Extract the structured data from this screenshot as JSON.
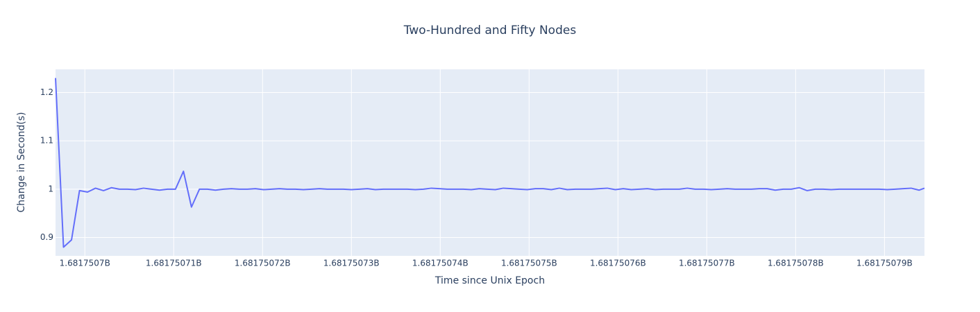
{
  "chart_data": {
    "type": "line",
    "title": "Two-Hundred and Fifty Nodes",
    "x_label": "Time since Unix Epoch",
    "y_label": "Change in Second(s)",
    "color": "#636efa",
    "background": "#e5ecf6",
    "grid": true,
    "x": [
      1681750696.7,
      1681750697.6,
      1681750698.5,
      1681750699.4,
      1681750700.3,
      1681750701.2,
      1681750702.1,
      1681750703,
      1681750703.9,
      1681750704.8,
      1681750705.7,
      1681750706.6,
      1681750707.5,
      1681750708.4,
      1681750709.3,
      1681750710.2,
      1681750711.1,
      1681750712,
      1681750712.9,
      1681750713.8,
      1681750714.7,
      1681750715.6,
      1681750716.5,
      1681750717.4,
      1681750718.3,
      1681750719.2,
      1681750720.1,
      1681750721,
      1681750721.9,
      1681750722.8,
      1681750723.7,
      1681750724.6,
      1681750725.5,
      1681750726.4,
      1681750727.3,
      1681750728.2,
      1681750729.1,
      1681750730,
      1681750730.9,
      1681750731.8,
      1681750732.7,
      1681750733.6,
      1681750734.5,
      1681750735.4,
      1681750736.3,
      1681750737.2,
      1681750738.1,
      1681750739,
      1681750739.9,
      1681750740.8,
      1681750741.7,
      1681750742.6,
      1681750743.5,
      1681750744.4,
      1681750745.3,
      1681750746.2,
      1681750747.1,
      1681750748,
      1681750748.9,
      1681750749.8,
      1681750750.7,
      1681750751.6,
      1681750752.5,
      1681750753.4,
      1681750754.3,
      1681750755.2,
      1681750756.1,
      1681750757,
      1681750757.9,
      1681750758.8,
      1681750759.7,
      1681750760.6,
      1681750761.5,
      1681750762.4,
      1681750763.3,
      1681750764.2,
      1681750765.1,
      1681750766,
      1681750766.9,
      1681750767.8,
      1681750768.7,
      1681750769.6,
      1681750770.5,
      1681750771.4,
      1681750772.3,
      1681750773.2,
      1681750774.1,
      1681750775,
      1681750775.9,
      1681750776.8,
      1681750777.7,
      1681750778.6,
      1681750779.5,
      1681750780.4,
      1681750781.3,
      1681750782.2,
      1681750783.1,
      1681750784,
      1681750784.9,
      1681750785.8,
      1681750786.7,
      1681750787.6,
      1681750788.5,
      1681750789.4,
      1681750790.3,
      1681750791.2,
      1681750792.1,
      1681750793,
      1681750793.9,
      1681750794.5
    ],
    "values": [
      1.23,
      0.88,
      0.895,
      0.997,
      0.994,
      1.002,
      0.997,
      1.003,
      1.0,
      1.0,
      0.999,
      1.002,
      1.0,
      0.998,
      1.0,
      1.0,
      1.037,
      0.963,
      1.0,
      1.0,
      0.998,
      1.0,
      1.001,
      1.0,
      1.0,
      1.001,
      0.999,
      1.0,
      1.001,
      1.0,
      1.0,
      0.999,
      1.0,
      1.001,
      1.0,
      1.0,
      1.0,
      0.999,
      1.0,
      1.001,
      0.999,
      1.0,
      1.0,
      1.0,
      1.0,
      0.999,
      1.0,
      1.002,
      1.001,
      1.0,
      1.0,
      1.0,
      0.999,
      1.001,
      1.0,
      0.999,
      1.002,
      1.001,
      1.0,
      0.999,
      1.001,
      1.001,
      0.999,
      1.002,
      0.999,
      1.0,
      1.0,
      1.0,
      1.001,
      1.002,
      0.999,
      1.001,
      0.999,
      1.0,
      1.001,
      0.999,
      1.0,
      1.0,
      1.0,
      1.002,
      1.0,
      1.0,
      0.999,
      1.0,
      1.001,
      1.0,
      1.0,
      1.0,
      1.001,
      1.001,
      0.998,
      1.0,
      1.0,
      1.003,
      0.997,
      1.0,
      1.0,
      0.999,
      1.0,
      1.0,
      1.0,
      1.0,
      1.0,
      1.0,
      0.999,
      1.0,
      1.001,
      1.002,
      0.998,
      1.002
    ],
    "xlim": [
      1681750696.7,
      1681750794.5
    ],
    "xticks": [
      {
        "value": 1681750700,
        "label": "1.6817507B"
      },
      {
        "value": 1681750710,
        "label": "1.68175071B"
      },
      {
        "value": 1681750720,
        "label": "1.68175072B"
      },
      {
        "value": 1681750730,
        "label": "1.68175073B"
      },
      {
        "value": 1681750740,
        "label": "1.68175074B"
      },
      {
        "value": 1681750750,
        "label": "1.68175075B"
      },
      {
        "value": 1681750760,
        "label": "1.68175076B"
      },
      {
        "value": 1681750770,
        "label": "1.68175077B"
      },
      {
        "value": 1681750780,
        "label": "1.68175078B"
      },
      {
        "value": 1681750790,
        "label": "1.68175079B"
      }
    ],
    "ylim": [
      0.862,
      1.248
    ],
    "yticks": [
      0.9,
      1,
      1.1,
      1.2
    ]
  }
}
